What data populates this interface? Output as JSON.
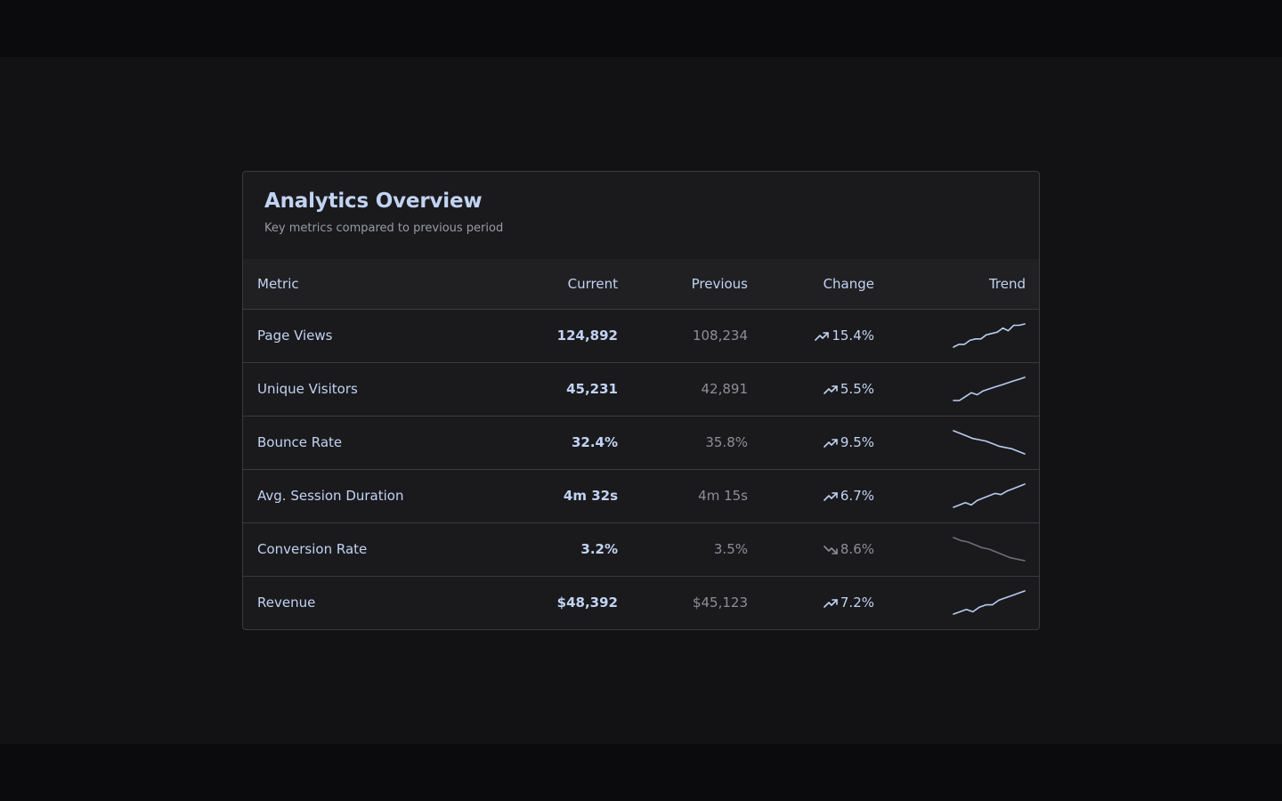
{
  "card": {
    "title": "Analytics Overview",
    "subtitle": "Key metrics compared to previous period"
  },
  "columns": {
    "metric": "Metric",
    "current": "Current",
    "previous": "Previous",
    "change": "Change",
    "trend": "Trend"
  },
  "colors": {
    "accent": "#c2d3f2",
    "muted": "#8d8f96",
    "trend_up": "#b9cdf0",
    "trend_down": "#6e6f75"
  },
  "rows": [
    {
      "metric": "Page Views",
      "current": "124,892",
      "previous": "108,234",
      "change": "15.4%",
      "direction": "up",
      "trend_icon": "trending-up-icon",
      "trend": [
        0.5,
        0.52,
        0.52,
        0.55,
        0.56,
        0.56,
        0.59,
        0.6,
        0.61,
        0.64,
        0.62,
        0.66,
        0.66,
        0.67
      ]
    },
    {
      "metric": "Unique Visitors",
      "current": "45,231",
      "previous": "42,891",
      "change": "5.5%",
      "direction": "up",
      "trend_icon": "trending-up-icon",
      "trend": [
        0.38,
        0.38,
        0.4,
        0.42,
        0.41,
        0.43,
        0.44,
        0.45,
        0.46,
        0.47,
        0.48,
        0.49,
        0.5
      ]
    },
    {
      "metric": "Bounce Rate",
      "current": "32.4%",
      "previous": "35.8%",
      "change": "9.5%",
      "direction": "up",
      "trend_icon": "trending-up-icon",
      "trend": [
        0.6,
        0.59,
        0.58,
        0.57,
        0.565,
        0.56,
        0.55,
        0.54,
        0.535,
        0.53,
        0.52,
        0.51
      ]
    },
    {
      "metric": "Avg. Session Duration",
      "current": "4m 32s",
      "previous": "4m 15s",
      "change": "6.7%",
      "direction": "up",
      "trend_icon": "trending-up-icon",
      "trend": [
        0.4,
        0.41,
        0.42,
        0.41,
        0.43,
        0.44,
        0.45,
        0.46,
        0.455,
        0.47,
        0.48,
        0.49,
        0.5
      ]
    },
    {
      "metric": "Conversion Rate",
      "current": "3.2%",
      "previous": "3.5%",
      "change": "8.6%",
      "direction": "down",
      "trend_icon": "trending-down-icon",
      "trend": [
        0.6,
        0.59,
        0.585,
        0.575,
        0.565,
        0.56,
        0.55,
        0.54,
        0.53,
        0.525,
        0.52
      ]
    },
    {
      "metric": "Revenue",
      "current": "$48,392",
      "previous": "$45,123",
      "change": "7.2%",
      "direction": "up",
      "trend_icon": "trending-up-icon",
      "trend": [
        0.4,
        0.41,
        0.42,
        0.41,
        0.43,
        0.44,
        0.44,
        0.46,
        0.47,
        0.48,
        0.49,
        0.5
      ]
    }
  ]
}
